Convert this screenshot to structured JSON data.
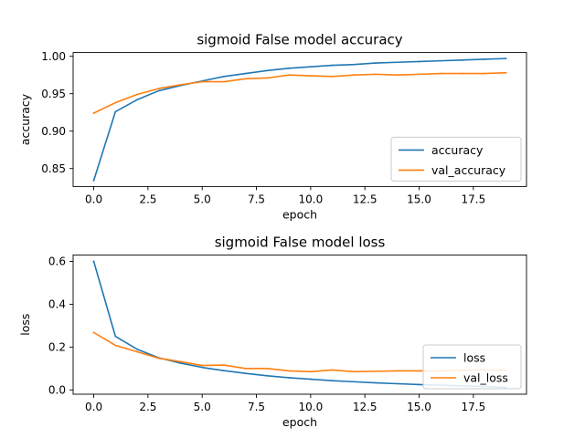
{
  "chart_data": [
    {
      "type": "line",
      "title": "sigmoid False model accuracy",
      "xlabel": "epoch",
      "ylabel": "accuracy",
      "xlim": [
        -0.95,
        19.95
      ],
      "ylim": [
        0.826,
        1.005
      ],
      "xticks": [
        0,
        2.5,
        5,
        7.5,
        10,
        12.5,
        15,
        17.5
      ],
      "xtick_labels": [
        "0.0",
        "2.5",
        "5.0",
        "7.5",
        "10.0",
        "12.5",
        "15.0",
        "17.5"
      ],
      "yticks": [
        0.85,
        0.9,
        0.95,
        1.0
      ],
      "ytick_labels": [
        "0.85",
        "0.90",
        "0.95",
        "1.00"
      ],
      "legend_position": "lower-right",
      "grid": false,
      "x": [
        0,
        1,
        2,
        3,
        4,
        5,
        6,
        7,
        8,
        9,
        10,
        11,
        12,
        13,
        14,
        15,
        16,
        17,
        18,
        19
      ],
      "series": [
        {
          "name": "accuracy",
          "color": "#1f77b4",
          "values": [
            0.834,
            0.926,
            0.942,
            0.954,
            0.961,
            0.967,
            0.973,
            0.977,
            0.981,
            0.984,
            0.986,
            0.988,
            0.989,
            0.991,
            0.992,
            0.993,
            0.994,
            0.995,
            0.996,
            0.997
          ]
        },
        {
          "name": "val_accuracy",
          "color": "#ff7f0e",
          "values": [
            0.924,
            0.938,
            0.949,
            0.957,
            0.962,
            0.966,
            0.966,
            0.97,
            0.971,
            0.975,
            0.974,
            0.973,
            0.975,
            0.976,
            0.975,
            0.976,
            0.977,
            0.977,
            0.977,
            0.978
          ]
        }
      ]
    },
    {
      "type": "line",
      "title": "sigmoid False model loss",
      "xlabel": "epoch",
      "ylabel": "loss",
      "xlim": [
        -0.95,
        19.95
      ],
      "ylim": [
        -0.02,
        0.63
      ],
      "xticks": [
        0,
        2.5,
        5,
        7.5,
        10,
        12.5,
        15,
        17.5
      ],
      "xtick_labels": [
        "0.0",
        "2.5",
        "5.0",
        "7.5",
        "10.0",
        "12.5",
        "15.0",
        "17.5"
      ],
      "yticks": [
        0.0,
        0.2,
        0.4,
        0.6
      ],
      "ytick_labels": [
        "0.0",
        "0.2",
        "0.4",
        "0.6"
      ],
      "legend_position": "lower-right",
      "grid": false,
      "x": [
        0,
        1,
        2,
        3,
        4,
        5,
        6,
        7,
        8,
        9,
        10,
        11,
        12,
        13,
        14,
        15,
        16,
        17,
        18,
        19
      ],
      "series": [
        {
          "name": "loss",
          "color": "#1f77b4",
          "values": [
            0.6,
            0.25,
            0.19,
            0.15,
            0.125,
            0.105,
            0.09,
            0.077,
            0.066,
            0.057,
            0.05,
            0.043,
            0.038,
            0.033,
            0.029,
            0.025,
            0.022,
            0.019,
            0.016,
            0.012
          ]
        },
        {
          "name": "val_loss",
          "color": "#ff7f0e",
          "values": [
            0.268,
            0.208,
            0.178,
            0.148,
            0.132,
            0.114,
            0.116,
            0.1,
            0.1,
            0.089,
            0.085,
            0.093,
            0.085,
            0.087,
            0.089,
            0.089,
            0.089,
            0.092,
            0.094,
            0.092
          ]
        }
      ]
    }
  ]
}
